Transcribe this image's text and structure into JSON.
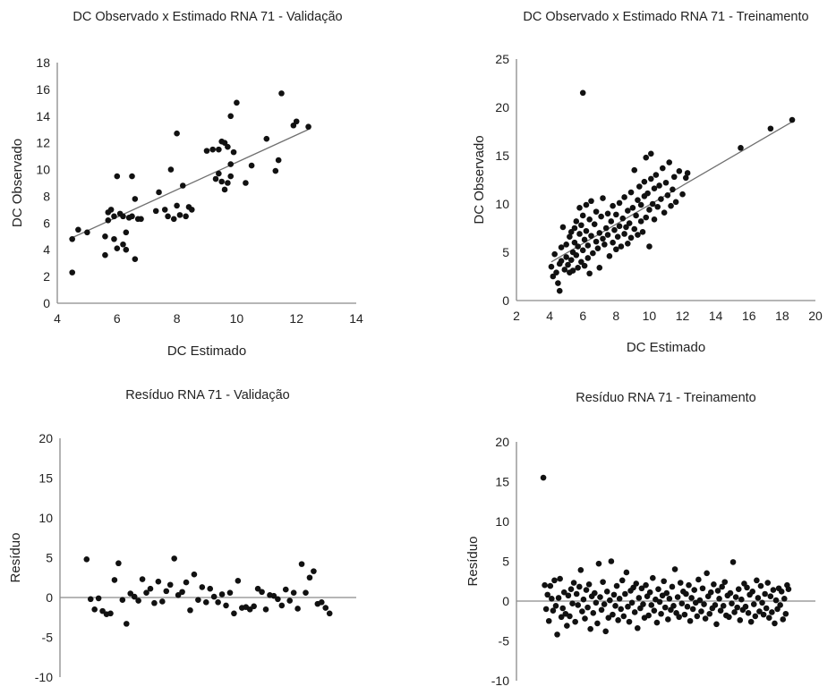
{
  "chart_data": [
    {
      "type": "scatter",
      "title": "DC Observado x Estimado RNA 71 - Validação",
      "xlabel": "DC Estimado",
      "ylabel": "DC Observado",
      "xlim": [
        4,
        14
      ],
      "ylim": [
        0,
        18
      ],
      "xticks": [
        "4",
        "6",
        "8",
        "10",
        "12",
        "14"
      ],
      "yticks": [
        "0",
        "2",
        "4",
        "6",
        "8",
        "10",
        "12",
        "14",
        "16",
        "18"
      ],
      "trendline": [
        [
          4.4,
          4.8
        ],
        [
          12.4,
          13.0
        ]
      ],
      "points": [
        [
          4.5,
          2.3
        ],
        [
          4.5,
          4.8
        ],
        [
          4.7,
          5.5
        ],
        [
          5.0,
          5.3
        ],
        [
          5.6,
          5.0
        ],
        [
          5.6,
          3.6
        ],
        [
          5.7,
          6.2
        ],
        [
          5.7,
          6.8
        ],
        [
          5.8,
          7.0
        ],
        [
          5.9,
          6.5
        ],
        [
          5.9,
          4.8
        ],
        [
          6.0,
          4.1
        ],
        [
          6.0,
          9.5
        ],
        [
          6.1,
          6.7
        ],
        [
          6.2,
          6.5
        ],
        [
          6.2,
          4.4
        ],
        [
          6.3,
          4.0
        ],
        [
          6.3,
          5.3
        ],
        [
          6.4,
          6.4
        ],
        [
          6.5,
          9.5
        ],
        [
          6.5,
          6.5
        ],
        [
          6.6,
          3.3
        ],
        [
          6.6,
          7.8
        ],
        [
          6.7,
          6.3
        ],
        [
          6.8,
          6.3
        ],
        [
          7.3,
          6.9
        ],
        [
          7.4,
          8.3
        ],
        [
          7.6,
          7.0
        ],
        [
          7.7,
          6.5
        ],
        [
          7.8,
          10.0
        ],
        [
          7.9,
          6.3
        ],
        [
          8.0,
          12.7
        ],
        [
          8.0,
          7.3
        ],
        [
          8.1,
          6.6
        ],
        [
          8.2,
          8.8
        ],
        [
          8.3,
          6.5
        ],
        [
          8.4,
          7.2
        ],
        [
          8.5,
          7.0
        ],
        [
          9.0,
          11.4
        ],
        [
          9.2,
          11.5
        ],
        [
          9.3,
          9.3
        ],
        [
          9.4,
          9.7
        ],
        [
          9.4,
          11.5
        ],
        [
          9.5,
          9.1
        ],
        [
          9.5,
          12.1
        ],
        [
          9.6,
          8.5
        ],
        [
          9.6,
          12.0
        ],
        [
          9.7,
          9.0
        ],
        [
          9.7,
          11.7
        ],
        [
          9.8,
          9.5
        ],
        [
          9.8,
          10.4
        ],
        [
          9.8,
          14.0
        ],
        [
          9.9,
          11.3
        ],
        [
          10.0,
          15.0
        ],
        [
          10.3,
          9.0
        ],
        [
          10.5,
          10.3
        ],
        [
          11.0,
          12.3
        ],
        [
          11.3,
          9.9
        ],
        [
          11.4,
          10.7
        ],
        [
          11.5,
          15.7
        ],
        [
          11.9,
          13.3
        ],
        [
          12.0,
          13.6
        ],
        [
          12.4,
          13.2
        ]
      ]
    },
    {
      "type": "scatter",
      "title": "DC Observado x Estimado RNA 71 - Treinamento",
      "xlabel": "DC Estimado",
      "ylabel": "DC Observado",
      "xlim": [
        2,
        20
      ],
      "ylim": [
        0,
        25
      ],
      "xticks": [
        "2",
        "4",
        "6",
        "8",
        "10",
        "12",
        "14",
        "16",
        "18",
        "20"
      ],
      "yticks": [
        "0",
        "5",
        "10",
        "15",
        "20",
        "25"
      ],
      "trendline": [
        [
          4.1,
          4.0
        ],
        [
          18.6,
          18.5
        ]
      ],
      "points": [
        [
          4.1,
          3.5
        ],
        [
          4.2,
          2.5
        ],
        [
          4.3,
          4.8
        ],
        [
          4.4,
          2.9
        ],
        [
          4.5,
          1.8
        ],
        [
          4.6,
          1.0
        ],
        [
          4.6,
          3.8
        ],
        [
          4.7,
          4.1
        ],
        [
          4.7,
          5.5
        ],
        [
          4.8,
          7.6
        ],
        [
          4.9,
          3.2
        ],
        [
          5.0,
          4.5
        ],
        [
          5.0,
          5.8
        ],
        [
          5.1,
          3.7
        ],
        [
          5.2,
          6.6
        ],
        [
          5.2,
          2.9
        ],
        [
          5.3,
          4.2
        ],
        [
          5.3,
          7.1
        ],
        [
          5.4,
          5.0
        ],
        [
          5.4,
          3.1
        ],
        [
          5.5,
          6.0
        ],
        [
          5.5,
          7.5
        ],
        [
          5.6,
          4.7
        ],
        [
          5.6,
          8.2
        ],
        [
          5.7,
          3.4
        ],
        [
          5.7,
          5.6
        ],
        [
          5.8,
          6.9
        ],
        [
          5.8,
          9.6
        ],
        [
          5.9,
          4.0
        ],
        [
          5.9,
          7.8
        ],
        [
          6.0,
          5.2
        ],
        [
          6.0,
          21.5
        ],
        [
          6.0,
          8.8
        ],
        [
          6.1,
          6.3
        ],
        [
          6.1,
          3.6
        ],
        [
          6.2,
          7.2
        ],
        [
          6.2,
          9.9
        ],
        [
          6.3,
          5.7
        ],
        [
          6.3,
          4.4
        ],
        [
          6.4,
          8.4
        ],
        [
          6.4,
          2.8
        ],
        [
          6.5,
          6.7
        ],
        [
          6.5,
          10.3
        ],
        [
          6.6,
          4.9
        ],
        [
          6.7,
          7.9
        ],
        [
          6.8,
          6.1
        ],
        [
          6.8,
          9.2
        ],
        [
          6.9,
          5.4
        ],
        [
          7.0,
          7.0
        ],
        [
          7.0,
          3.4
        ],
        [
          7.1,
          8.7
        ],
        [
          7.2,
          6.4
        ],
        [
          7.2,
          10.6
        ],
        [
          7.3,
          5.8
        ],
        [
          7.4,
          7.5
        ],
        [
          7.5,
          9.0
        ],
        [
          7.5,
          6.8
        ],
        [
          7.6,
          4.6
        ],
        [
          7.7,
          8.2
        ],
        [
          7.8,
          6.0
        ],
        [
          7.8,
          9.8
        ],
        [
          7.9,
          7.3
        ],
        [
          8.0,
          5.3
        ],
        [
          8.0,
          8.9
        ],
        [
          8.1,
          6.6
        ],
        [
          8.2,
          10.1
        ],
        [
          8.2,
          7.7
        ],
        [
          8.3,
          5.6
        ],
        [
          8.4,
          8.5
        ],
        [
          8.5,
          6.9
        ],
        [
          8.5,
          10.7
        ],
        [
          8.6,
          7.6
        ],
        [
          8.7,
          9.3
        ],
        [
          8.7,
          5.9
        ],
        [
          8.8,
          8.0
        ],
        [
          8.9,
          11.2
        ],
        [
          8.9,
          6.5
        ],
        [
          9.0,
          9.6
        ],
        [
          9.1,
          7.4
        ],
        [
          9.1,
          13.5
        ],
        [
          9.2,
          8.8
        ],
        [
          9.3,
          10.4
        ],
        [
          9.3,
          6.8
        ],
        [
          9.4,
          11.8
        ],
        [
          9.5,
          8.2
        ],
        [
          9.5,
          9.9
        ],
        [
          9.6,
          7.1
        ],
        [
          9.7,
          12.3
        ],
        [
          9.7,
          10.8
        ],
        [
          9.8,
          14.8
        ],
        [
          9.8,
          8.6
        ],
        [
          9.9,
          11.1
        ],
        [
          10.0,
          5.6
        ],
        [
          10.0,
          9.4
        ],
        [
          10.1,
          12.6
        ],
        [
          10.1,
          15.2
        ],
        [
          10.2,
          10.0
        ],
        [
          10.3,
          11.6
        ],
        [
          10.3,
          8.4
        ],
        [
          10.4,
          13.0
        ],
        [
          10.5,
          9.7
        ],
        [
          10.6,
          11.9
        ],
        [
          10.7,
          10.5
        ],
        [
          10.8,
          13.7
        ],
        [
          10.9,
          9.1
        ],
        [
          11.0,
          12.2
        ],
        [
          11.1,
          10.9
        ],
        [
          11.2,
          14.3
        ],
        [
          11.3,
          9.8
        ],
        [
          11.4,
          11.5
        ],
        [
          11.5,
          12.8
        ],
        [
          11.6,
          10.2
        ],
        [
          11.8,
          13.4
        ],
        [
          12.0,
          11.0
        ],
        [
          12.2,
          12.7
        ],
        [
          12.3,
          13.2
        ],
        [
          15.5,
          15.8
        ],
        [
          17.3,
          17.8
        ],
        [
          18.6,
          18.7
        ]
      ]
    },
    {
      "type": "scatter",
      "title": "Resíduo RNA 71 - Validação",
      "xlabel": "",
      "ylabel": "Resíduo",
      "xlim": [
        0,
        63
      ],
      "ylim": [
        -10,
        20
      ],
      "yticks": [
        "-10",
        "-5",
        "0",
        "5",
        "10",
        "15",
        "20"
      ],
      "hline": 0,
      "residuals": [
        4.8,
        -0.2,
        -1.5,
        -0.1,
        -1.7,
        -2.1,
        -2.0,
        2.2,
        4.3,
        -0.3,
        -3.3,
        0.5,
        0.1,
        -0.4,
        2.3,
        0.6,
        1.1,
        -0.7,
        2.0,
        -0.5,
        0.8,
        1.6,
        4.9,
        0.3,
        0.7,
        1.9,
        -1.6,
        2.9,
        -0.3,
        1.3,
        -0.6,
        1.1,
        0.1,
        -0.6,
        0.4,
        -1.0,
        0.6,
        -2.0,
        2.1,
        -1.3,
        -1.2,
        -1.5,
        -1.1,
        1.1,
        0.7,
        -1.5,
        0.3,
        0.2,
        -0.2,
        -1.0,
        1.0,
        -0.4,
        0.6,
        -1.4,
        4.2,
        0.6,
        2.5,
        3.3,
        -0.8,
        -0.6,
        -1.3,
        -2.0
      ]
    },
    {
      "type": "scatter",
      "title": "Resíduo RNA 71 - Treinamento",
      "xlabel": "",
      "ylabel": "Resíduo",
      "xlim": [
        0,
        180
      ],
      "ylim": [
        -10,
        20
      ],
      "yticks": [
        "-10",
        "-5",
        "0",
        "5",
        "10",
        "15",
        "20"
      ],
      "hline": 0,
      "residuals": [
        15.5,
        2.0,
        -1.0,
        0.8,
        -2.5,
        1.9,
        0.3,
        -1.2,
        2.6,
        -0.6,
        -4.2,
        0.4,
        2.8,
        -2.0,
        -0.9,
        1.1,
        -1.6,
        -3.1,
        0.7,
        -1.9,
        1.5,
        -0.3,
        2.3,
        -2.6,
        0.9,
        -0.5,
        1.8,
        3.9,
        -1.3,
        0.2,
        -2.2,
        1.4,
        -0.8,
        2.1,
        -3.5,
        0.6,
        -1.5,
        1.0,
        -0.2,
        -2.8,
        4.7,
        0.5,
        -1.1,
        2.4,
        -0.4,
        -3.8,
        1.2,
        -2.1,
        0.1,
        5.0,
        -1.7,
        0.8,
        -0.6,
        1.9,
        -2.4,
        0.3,
        -1.0,
        2.6,
        -1.9,
        0.9,
        3.6,
        -0.7,
        -2.6,
        1.3,
        -0.2,
        1.7,
        -1.4,
        2.2,
        -3.4,
        0.4,
        -0.9,
        1.6,
        -0.4,
        -2.1,
        2.0,
        0.6,
        -1.8,
        1.1,
        -0.5,
        2.9,
        -1.2,
        0.2,
        -2.7,
        1.5,
        -0.1,
        -1.6,
        0.7,
        2.5,
        -0.8,
        1.0,
        -2.3,
        0.3,
        -1.1,
        1.8,
        -0.6,
        4.0,
        -1.5,
        0.5,
        -2.0,
        2.3,
        -0.3,
        1.2,
        -1.7,
        0.9,
        -0.7,
        2.0,
        -2.5,
        0.4,
        -1.0,
        1.4,
        -0.2,
        -1.9,
        2.7,
        0.1,
        -1.3,
        1.6,
        -0.4,
        -2.2,
        3.5,
        0.6,
        -1.6,
        1.1,
        -0.9,
        2.1,
        -0.5,
        -2.9,
        1.3,
        0.3,
        -1.2,
        1.8,
        -0.6,
        2.4,
        -1.8,
        0.7,
        -2.0,
        1.0,
        -0.3,
        4.9,
        -1.4,
        0.5,
        -0.8,
        1.5,
        -2.4,
        0.2,
        -1.1,
        2.2,
        -0.7,
        1.7,
        -1.5,
        0.8,
        -2.6,
        1.2,
        -0.4,
        -1.9,
        2.6,
        0.4,
        -1.3,
        1.9,
        -0.2,
        -1.7,
        0.9,
        -0.9,
        2.3,
        -2.1,
        0.6,
        -1.4,
        1.4,
        -2.8,
        0.1,
        -1.0,
        1.6,
        -0.5,
        1.2,
        -2.3,
        0.3,
        -1.6,
        2.0,
        1.5
      ]
    }
  ]
}
